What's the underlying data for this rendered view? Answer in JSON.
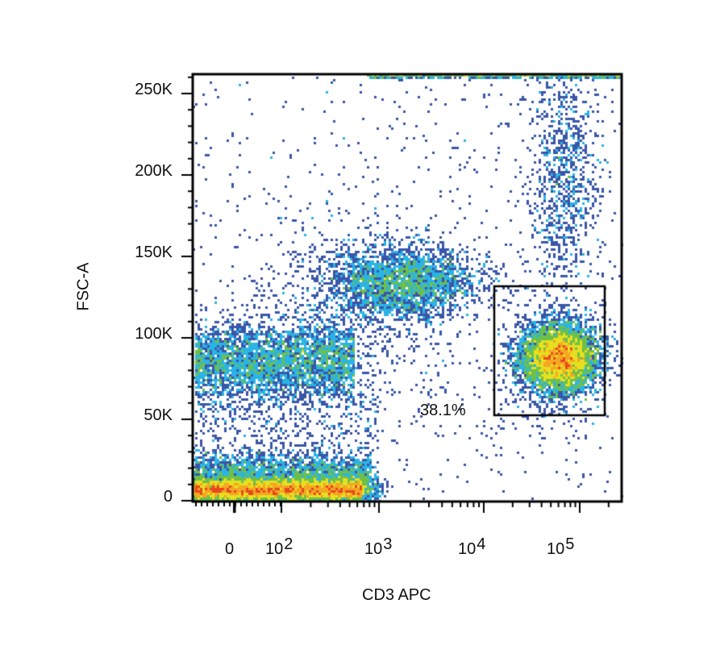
{
  "chart_data": {
    "type": "scatter",
    "subtype": "flow-cytometry-pseudocolor-density",
    "title": "",
    "xlabel": "CD3 APC",
    "ylabel": "FSC-A",
    "x_scale": "biexponential",
    "x_tick_labels": [
      {
        "label": "0",
        "base": "0",
        "exp": ""
      },
      {
        "label": "10^2",
        "base": "10",
        "exp": "2"
      },
      {
        "label": "10^3",
        "base": "10",
        "exp": "3"
      },
      {
        "label": "10^4",
        "base": "10",
        "exp": "4"
      },
      {
        "label": "10^5",
        "base": "10",
        "exp": "5"
      }
    ],
    "y_scale": "linear",
    "y_tick_labels": [
      "0",
      "50K",
      "100K",
      "150K",
      "200K",
      "250K"
    ],
    "y_ticks": [
      0,
      50000,
      100000,
      150000,
      200000,
      250000
    ],
    "ylim": [
      0,
      262144
    ],
    "grid": false,
    "legend": null,
    "color_scale": [
      "#3a56a8",
      "#2ab4e6",
      "#6cc04a",
      "#e6e020",
      "#f5a623",
      "#e8481e"
    ],
    "populations": [
      {
        "name": "low-FSC debris band",
        "x_center": "~0 to 10^2.8",
        "fsc_center": 5000,
        "density": "high"
      },
      {
        "name": "CD3-negative mid FSC",
        "x_center": "~0 to 10^2.8",
        "fsc_center": 87000,
        "density": "medium"
      },
      {
        "name": "CD3-intermediate cluster",
        "x_center": "~10^3.2",
        "fsc_center": 135000,
        "density": "medium"
      },
      {
        "name": "CD3-positive high FSC",
        "x_center": "~10^5",
        "fsc_center": 200000,
        "density": "low"
      },
      {
        "name": "CD3-positive T cells (gated)",
        "x_center": "~10^4.8",
        "fsc_center": 88000,
        "density": "very high"
      }
    ],
    "gates": [
      {
        "shape": "rectangle",
        "label": "38.1%",
        "value_percent": 38.1,
        "x_range": "~10^4.1 to ~10^5.3",
        "y_range": [
          54000,
          133000
        ]
      }
    ]
  },
  "axes": {
    "xlabel": "CD3 APC",
    "ylabel": "FSC-A"
  },
  "gate": {
    "label": "38.1%"
  }
}
